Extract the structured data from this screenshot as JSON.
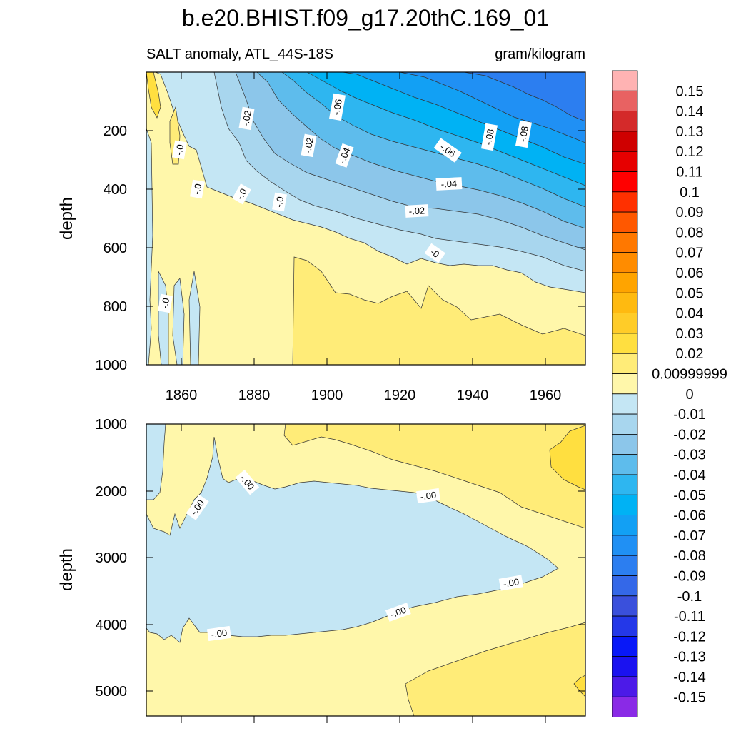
{
  "chart_data": {
    "type": "heatmap",
    "title": "b.e20.BHIST.f09_g17.20thC.169_01",
    "subtitle_left": "SALT anomaly, ATL_44S-18S",
    "subtitle_right": "gram/kilogram",
    "colorbar": {
      "levels": [
        "0.15",
        "0.14",
        "0.13",
        "0.12",
        "0.11",
        "0.1",
        "0.09",
        "0.08",
        "0.07",
        "0.06",
        "0.05",
        "0.04",
        "0.03",
        "0.02",
        "0.00999999",
        "0",
        "-0.01",
        "-0.02",
        "-0.03",
        "-0.04",
        "-0.05",
        "-0.06",
        "-0.07",
        "-0.08",
        "-0.09",
        "-0.1",
        "-0.11",
        "-0.12",
        "-0.13",
        "-0.14",
        "-0.15"
      ],
      "colors": [
        "#FFB3B3",
        "#E86262",
        "#D42A2A",
        "#CF0000",
        "#E60000",
        "#FF0000",
        "#FF3000",
        "#FF5800",
        "#FF7800",
        "#FF8C00",
        "#FFA400",
        "#FFBA10",
        "#FFCC28",
        "#FFDF40",
        "#FFEC78",
        "#FFF7AA",
        "#C4E6F4",
        "#A8D6EE",
        "#8CC6EA",
        "#5EBCEC",
        "#2EB6F0",
        "#00B2F4",
        "#12A0F4",
        "#2090F4",
        "#2C7EF0",
        "#3468E8",
        "#3A50DC",
        "#2438E8",
        "#0818F8",
        "#1A12F0",
        "#4C1AE8",
        "#8A2AE6"
      ]
    },
    "panels": [
      {
        "name": "upper",
        "ylabel": "depth",
        "ylim": [
          0,
          1000
        ],
        "xlim": [
          1850,
          1970
        ],
        "x_ticks": [
          "1860",
          "1880",
          "1900",
          "1920",
          "1940",
          "1960"
        ],
        "y_ticks": [
          "200",
          "400",
          "600",
          "800",
          "1000"
        ],
        "contour_labels": [
          "-.02",
          "-.06",
          "-.0",
          "-.02",
          "-.04",
          "-.06",
          "-.08",
          "-.08",
          "-.0",
          "-.0",
          "-.0",
          "-.04",
          "-.02",
          "-.0",
          "-0"
        ]
      },
      {
        "name": "lower",
        "ylabel": "depth",
        "ylim": [
          1000,
          5350
        ],
        "xlim": [
          1850,
          1970
        ],
        "y_ticks": [
          "1000",
          "2000",
          "3000",
          "4000",
          "5000"
        ],
        "contour_labels": [
          "-.00",
          "-.00",
          "-.00",
          "-.00",
          "-.00",
          "-.00"
        ]
      }
    ]
  }
}
